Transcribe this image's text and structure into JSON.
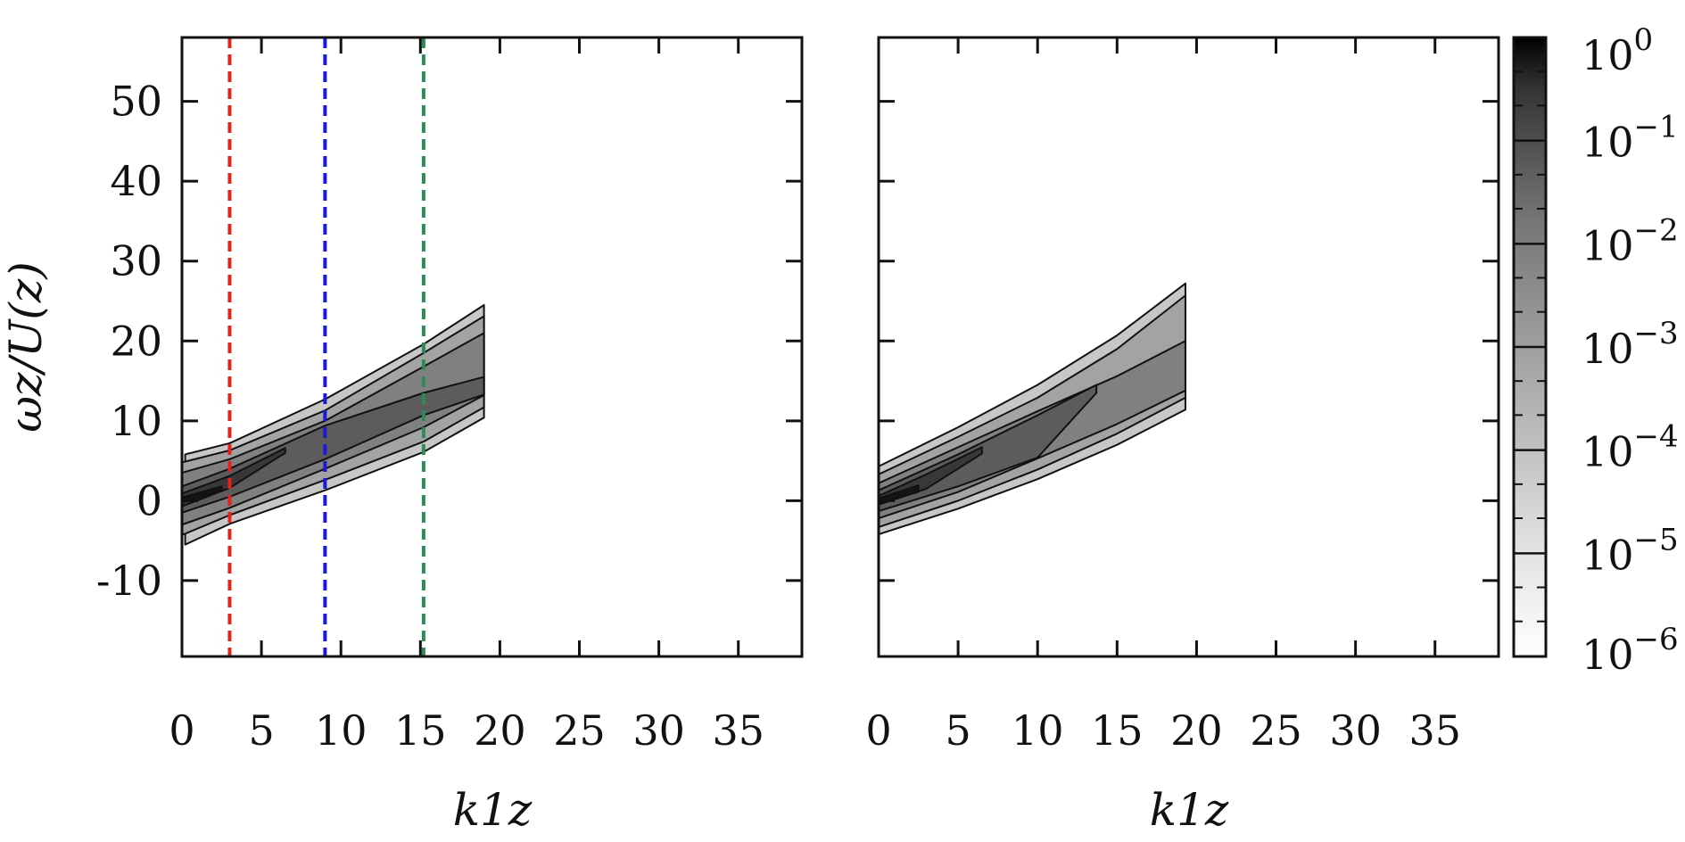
{
  "chart_data": [
    {
      "type": "heatmap",
      "panel": "left",
      "xlabel": "k1z",
      "ylabel": "ωz/U(z)",
      "xlim": [
        0,
        39
      ],
      "ylim": [
        -19.5,
        58
      ],
      "x_ticks": [
        "0",
        "5",
        "10",
        "15",
        "20",
        "25",
        "30",
        "35"
      ],
      "x_tick_values": [
        0,
        5,
        10,
        15,
        20,
        25,
        30,
        35
      ],
      "y_ticks": [
        "-10",
        "0",
        "10",
        "20",
        "30",
        "40",
        "50"
      ],
      "y_tick_values": [
        -10,
        0,
        10,
        20,
        30,
        40,
        50
      ],
      "grid": false,
      "lines": [
        {
          "orientation": "vertical",
          "x": 3.0,
          "style": "dashed",
          "color": "#e8211b"
        },
        {
          "orientation": "vertical",
          "x": 9.0,
          "style": "dashed",
          "color": "#1919d6"
        },
        {
          "orientation": "vertical",
          "x": 15.2,
          "style": "dashed",
          "color": "#2e8b57"
        }
      ],
      "contours": [
        {
          "level": 1e-05,
          "outer_top": [
            [
              0.2,
              5.8
            ],
            [
              3,
              7.2
            ],
            [
              9,
              12.7
            ],
            [
              15.2,
              19.6
            ],
            [
              19,
              24.5
            ]
          ],
          "outer_bottom": [
            [
              0.2,
              -5.5
            ],
            [
              3,
              -2.9
            ],
            [
              9,
              1.3
            ],
            [
              15.2,
              6.1
            ],
            [
              19,
              10.4
            ]
          ]
        },
        {
          "level": 0.0001,
          "outer_top": [
            [
              0,
              4.8
            ],
            [
              3,
              6.3
            ],
            [
              9,
              11.3
            ],
            [
              15.2,
              18.5
            ],
            [
              19,
              23.1
            ]
          ],
          "outer_bottom": [
            [
              0,
              -4.3
            ],
            [
              3,
              -1.8
            ],
            [
              9,
              2.6
            ],
            [
              15.2,
              7.4
            ],
            [
              19,
              11.7
            ]
          ]
        },
        {
          "level": 0.001,
          "outer_top": [
            [
              0,
              3.5
            ],
            [
              3,
              5.2
            ],
            [
              9,
              10.0
            ],
            [
              15.2,
              16.8
            ],
            [
              19,
              21.0
            ]
          ],
          "outer_bottom": [
            [
              0,
              -3.0
            ],
            [
              3,
              -0.9
            ],
            [
              9,
              4.0
            ],
            [
              15.2,
              9.2
            ],
            [
              19,
              13.2
            ]
          ]
        },
        {
          "level": 0.01,
          "outer_top": [
            [
              0,
              1.8
            ],
            [
              3,
              4.0
            ],
            [
              9,
              9.4
            ],
            [
              15.2,
              13.5
            ],
            [
              19,
              15.5
            ]
          ],
          "outer_bottom": [
            [
              0,
              -1.5
            ],
            [
              3,
              0.5
            ],
            [
              9,
              5.2
            ],
            [
              15.2,
              10.7
            ],
            [
              19,
              13.3
            ]
          ]
        },
        {
          "level": 0.1,
          "outer_top": [
            [
              0,
              0.9
            ],
            [
              3,
              3.1
            ],
            [
              6.5,
              6.6
            ]
          ],
          "outer_bottom": [
            [
              0,
              -0.7
            ],
            [
              3,
              1.6
            ],
            [
              6.5,
              6.0
            ]
          ]
        },
        {
          "level": 1,
          "outer_top": [
            [
              0,
              0.4
            ],
            [
              2.5,
              1.8
            ]
          ],
          "outer_bottom": [
            [
              0,
              -0.2
            ],
            [
              2.5,
              1.2
            ]
          ]
        }
      ]
    },
    {
      "type": "heatmap",
      "panel": "right",
      "xlabel": "k1z",
      "ylabel": "",
      "xlim": [
        0,
        39
      ],
      "ylim": [
        -19.5,
        58
      ],
      "x_ticks": [
        "0",
        "5",
        "10",
        "15",
        "20",
        "25",
        "30",
        "35"
      ],
      "x_tick_values": [
        0,
        5,
        10,
        15,
        20,
        25,
        30,
        35
      ],
      "y_tick_values": [
        -10,
        0,
        10,
        20,
        30,
        40,
        50
      ],
      "grid": false,
      "contours": [
        {
          "level": 1e-05,
          "outer_top": [
            [
              0,
              4.3
            ],
            [
              5,
              9.2
            ],
            [
              10,
              14.5
            ],
            [
              15,
              20.7
            ],
            [
              19.3,
              27.2
            ]
          ],
          "outer_bottom": [
            [
              0,
              -4.2
            ],
            [
              5,
              -1.0
            ],
            [
              10,
              2.7
            ],
            [
              15,
              7.0
            ],
            [
              19.3,
              11.4
            ]
          ]
        },
        {
          "level": 0.0001,
          "outer_top": [
            [
              0,
              3.3
            ],
            [
              5,
              8.0
            ],
            [
              10,
              12.9
            ],
            [
              15,
              19.0
            ],
            [
              19.3,
              25.7
            ]
          ],
          "outer_bottom": [
            [
              0,
              -3.3
            ],
            [
              5,
              0.0
            ],
            [
              10,
              3.9
            ],
            [
              15,
              8.4
            ],
            [
              19.3,
              12.9
            ]
          ]
        },
        {
          "level": 0.001,
          "outer_top": [
            [
              0,
              2.2
            ],
            [
              5,
              6.7
            ],
            [
              10,
              11.2
            ],
            [
              15,
              15.6
            ],
            [
              19.3,
              20.0
            ]
          ],
          "outer_bottom": [
            [
              0,
              -2.2
            ],
            [
              5,
              1.1
            ],
            [
              10,
              5.3
            ],
            [
              15,
              9.6
            ],
            [
              19.3,
              13.8
            ]
          ]
        },
        {
          "level": 0.01,
          "outer_top": [
            [
              0,
              1.3
            ],
            [
              5,
              5.8
            ],
            [
              10,
              10.7
            ],
            [
              13.7,
              14.5
            ]
          ],
          "outer_bottom": [
            [
              0,
              -1.3
            ],
            [
              5,
              1.8
            ],
            [
              10,
              5.4
            ],
            [
              13.7,
              13.5
            ]
          ]
        },
        {
          "level": 0.1,
          "outer_top": [
            [
              0,
              0.6
            ],
            [
              3,
              3.3
            ],
            [
              6.5,
              6.7
            ]
          ],
          "outer_bottom": [
            [
              0,
              -0.5
            ],
            [
              3,
              1.5
            ],
            [
              6.5,
              5.9
            ]
          ]
        },
        {
          "level": 1,
          "outer_top": [
            [
              0,
              0.3
            ],
            [
              2.5,
              1.9
            ]
          ],
          "outer_bottom": [
            [
              0,
              -0.3
            ],
            [
              2.5,
              1.1
            ]
          ]
        }
      ]
    }
  ],
  "colorbar": {
    "scale": "log",
    "range": [
      1e-06,
      1
    ],
    "colormap": [
      "#000000",
      "#ffffff"
    ],
    "ticks": [
      {
        "value": 1,
        "base": "10",
        "exp": "0"
      },
      {
        "value": 0.1,
        "base": "10",
        "exp": "−1"
      },
      {
        "value": 0.01,
        "base": "10",
        "exp": "−2"
      },
      {
        "value": 0.001,
        "base": "10",
        "exp": "−3"
      },
      {
        "value": 0.0001,
        "base": "10",
        "exp": "−4"
      },
      {
        "value": 1e-05,
        "base": "10",
        "exp": "−5"
      },
      {
        "value": 1e-06,
        "base": "10",
        "exp": "−6"
      }
    ],
    "contour_levels": [
      0.1,
      0.01,
      0.001,
      0.0001,
      1e-05
    ]
  }
}
